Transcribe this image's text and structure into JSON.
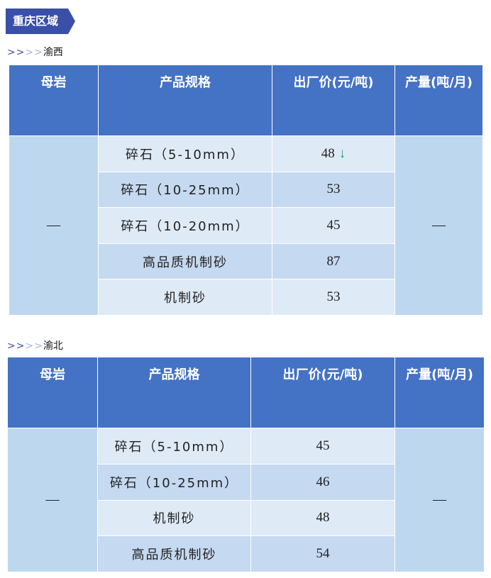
{
  "region_tag": "重庆区域",
  "arrows": ">>>>",
  "sections": [
    {
      "name": "渝西",
      "headers": [
        "母岩",
        "产品规格",
        "出厂价(元/吨)",
        "产量(吨/月)"
      ],
      "rock": "—",
      "output": "—",
      "rows": [
        {
          "spec": "碎石（5-10mm）",
          "price": "48",
          "trend": "down",
          "trend_icon": "↓"
        },
        {
          "spec": "碎石（10-25mm）",
          "price": "53"
        },
        {
          "spec": "碎石（10-20mm）",
          "price": "45"
        },
        {
          "spec": "高品质机制砂",
          "price": "87"
        },
        {
          "spec": "机制砂",
          "price": "53"
        }
      ]
    },
    {
      "name": "渝北",
      "headers": [
        "母岩",
        "产品规格",
        "出厂价(元/吨)",
        "产量(吨/月)"
      ],
      "rock": "—",
      "output": "—",
      "rows": [
        {
          "spec": "碎石（5-10mm）",
          "price": "45"
        },
        {
          "spec": "碎石（10-25mm）",
          "price": "46"
        },
        {
          "spec": "机制砂",
          "price": "48"
        },
        {
          "spec": "高品质机制砂",
          "price": "54"
        }
      ]
    }
  ],
  "colors": {
    "header": "#4472c4",
    "tag": "#3a4fa8",
    "down": "#1fa35a"
  }
}
